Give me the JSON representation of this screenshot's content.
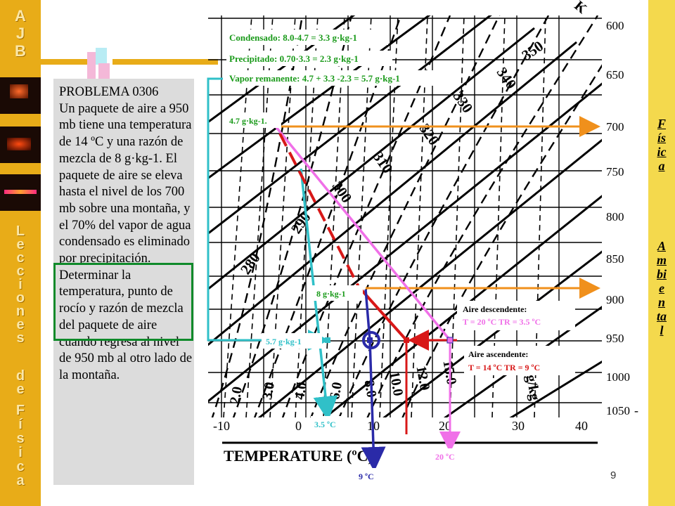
{
  "branding": {
    "acronym": "AJB",
    "left_vertical_1": "Lecciones",
    "left_vertical_2": "de",
    "left_vertical_3": "Física",
    "right_vertical_1": "Física",
    "right_vertical_2": "Ambiental"
  },
  "problem": {
    "heading": "PROBLEMA 0306",
    "text": "Un paquete de aire a 950 mb tiene una temperatura de 14 ºC y una razón de mezcla de 8 g·kg-1. El paquete de aire se eleva hasta el nivel de los 700 mb sobre una montaña, y el 70% del vapor de agua condensado es eliminado por precipitación. Determinar la temperatura, punto de rocío y razón de mezcla del paquete de aire cuando regresa al nivel de 950 mb al otro lado de la montaña."
  },
  "page": {
    "number": "9"
  },
  "diagram": {
    "annotations": {
      "condensado": "Condensado: 8.0-4.7 = 3.3 g·kg-1",
      "precipitado": "Precipitado: 0.70·3.3 = 2.3 g·kg-1",
      "vapor": "Vapor remanente: 4.7 + 3.3 -2.3 = 5.7 g·kg-1",
      "w_top": "4.7 g·kg-1.",
      "w_start": "8 g·kg-1",
      "w_end": "5.7 g·kg-1",
      "descending_title": "Aire descendente:",
      "descending_values": "T = 20 ºC   TR = 3.5 ºC",
      "ascending_title": "Aire ascendente:",
      "ascending_values": "T = 14 ºC   TR = 9 ºC",
      "bottom_dewpoint": "3.5 ºC",
      "bottom_temp": "20 ºC",
      "bottom_start": "9 ºC"
    },
    "pressure_labels": [
      "600",
      "650",
      "700",
      "750",
      "800",
      "850",
      "900",
      "950",
      "1000",
      "1050"
    ],
    "temperature_labels": [
      "-10",
      "0",
      "10",
      "20",
      "30",
      "40"
    ],
    "theta_labels": [
      "350",
      "340",
      "330",
      "320",
      "310",
      "300",
      "290",
      "280"
    ],
    "mixing_labels": [
      "2.0",
      "3.0",
      "4.0",
      "6.0",
      "8.0",
      "10.0",
      "12.0",
      "15.0",
      "20 g/kg"
    ],
    "axis_title": "TEMPERATURE (ºC)",
    "colors": {
      "cyan": "#30c0c8",
      "pink": "#f070e8",
      "red": "#d81818",
      "orange": "#f0901c",
      "navy": "#2a2aa8",
      "green": "#0f8a2a"
    }
  }
}
